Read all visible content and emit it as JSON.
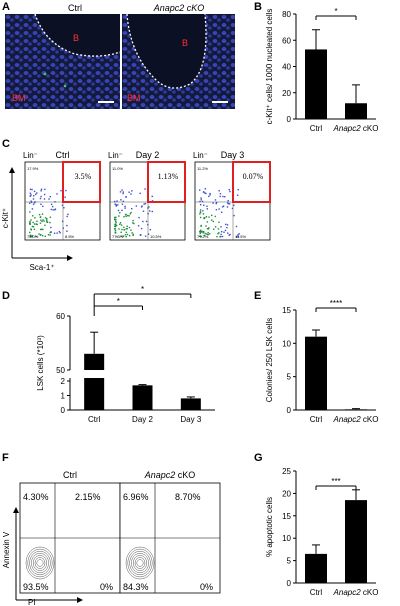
{
  "panels": {
    "A": {
      "letter": "A",
      "left_title": "Ctrl",
      "right_title": "Anapc2 cKO",
      "left_labels": [
        "B",
        "BM"
      ],
      "right_labels": [
        "B",
        "BM"
      ]
    },
    "B": {
      "letter": "B",
      "sig": "*"
    },
    "C": {
      "letter": "C",
      "plots": [
        {
          "gate": "Lin⁻",
          "title": "Ctrl",
          "pct": "3.5%",
          "q1": "17.9%",
          "q3": "8.5%",
          "q4": "75.0%"
        },
        {
          "gate": "Lin⁻",
          "title": "Day 2",
          "pct": "1.13%",
          "q1": "11.0%",
          "q3": "10.5%",
          "q4": "77.3%"
        },
        {
          "gate": "Lin⁻",
          "title": "Day 3",
          "pct": "0.07%",
          "q1": "11.2%",
          "q3": "11.5%",
          "q4": "77.2%"
        }
      ],
      "y_axis": "c-Kit⁺",
      "x_axis": "Sca-1⁺"
    },
    "D": {
      "letter": "D",
      "sig": [
        "*",
        "*"
      ]
    },
    "E": {
      "letter": "E",
      "sig": "****"
    },
    "F": {
      "letter": "F",
      "plots": [
        {
          "title": "Ctrl",
          "ul": "4.30%",
          "ur": "2.15%",
          "ll": "93.5%",
          "lr": "0%"
        },
        {
          "title": "Anapc2 cKO",
          "ul": "6.96%",
          "ur": "8.70%",
          "ll": "84.3%",
          "lr": "0%"
        }
      ],
      "y_axis": "Annexin V",
      "x_axis": "PI"
    },
    "G": {
      "letter": "G",
      "sig": "***"
    }
  },
  "chart_data": [
    {
      "panel": "B",
      "type": "bar",
      "categories": [
        "Ctrl",
        "Anapc2 cKO"
      ],
      "values": [
        53,
        12
      ],
      "errors": [
        15,
        14
      ],
      "ylabel": "c-Kit⁺ cells/ 1000 nucleated cells",
      "ylim": [
        0,
        80
      ],
      "yticks": [
        0,
        20,
        40,
        60,
        80
      ]
    },
    {
      "panel": "D",
      "type": "bar",
      "categories": [
        "Ctrl",
        "Day 2",
        "Day 3"
      ],
      "values": [
        53,
        1.7,
        0.8
      ],
      "errors": [
        4,
        0.05,
        0.1
      ],
      "ylabel": "LSK cells (*10³)",
      "axis_break": true,
      "yticks": [
        0,
        1,
        2,
        50,
        60
      ]
    },
    {
      "panel": "E",
      "type": "bar",
      "categories": [
        "Ctrl",
        "Anapc2 cKO"
      ],
      "values": [
        11,
        0.1
      ],
      "errors": [
        1,
        0.1
      ],
      "ylabel": "Colonies/ 250 LSK cells",
      "ylim": [
        0,
        15
      ],
      "yticks": [
        0,
        5,
        10,
        15
      ]
    },
    {
      "panel": "G",
      "type": "bar",
      "categories": [
        "Ctrl",
        "Anapc2 cKO"
      ],
      "values": [
        6.5,
        18.5
      ],
      "errors": [
        2,
        2.3
      ],
      "ylabel": "% apoptotic cells",
      "ylim": [
        0,
        25
      ],
      "yticks": [
        0,
        5,
        10,
        15,
        20,
        25
      ]
    }
  ]
}
